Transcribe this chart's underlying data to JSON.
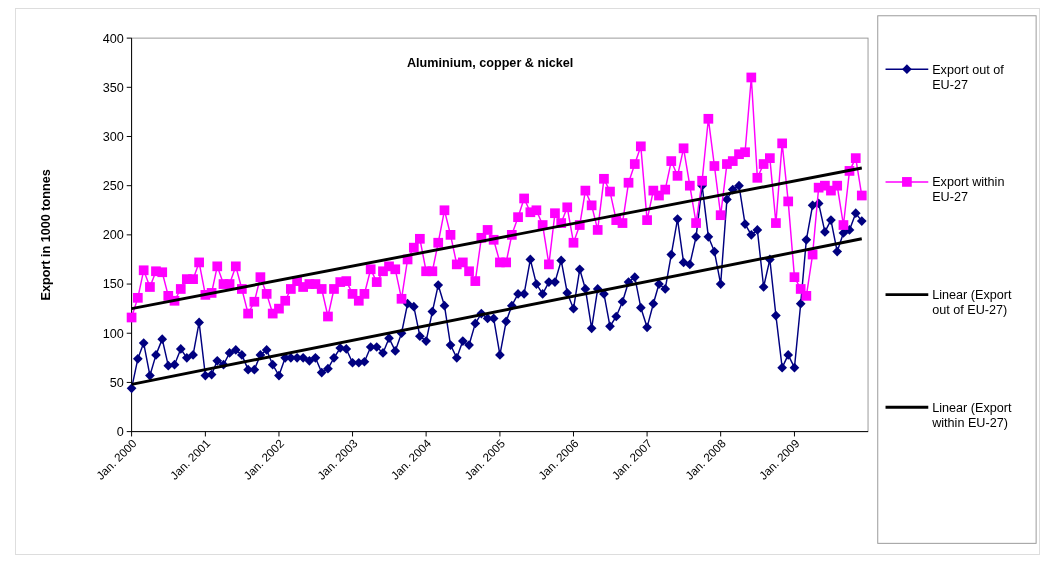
{
  "chart_data": {
    "type": "line",
    "title": "Aluminium, copper & nickel",
    "ylabel": "Export in 1000 tonnes",
    "x": [
      "2000-01",
      "2000-02",
      "2000-03",
      "2000-04",
      "2000-05",
      "2000-06",
      "2000-07",
      "2000-08",
      "2000-09",
      "2000-10",
      "2000-11",
      "2000-12",
      "2001-01",
      "2001-02",
      "2001-03",
      "2001-04",
      "2001-05",
      "2001-06",
      "2001-07",
      "2001-08",
      "2001-09",
      "2001-10",
      "2001-11",
      "2001-12",
      "2002-01",
      "2002-02",
      "2002-03",
      "2002-04",
      "2002-05",
      "2002-06",
      "2002-07",
      "2002-08",
      "2002-09",
      "2002-10",
      "2002-11",
      "2002-12",
      "2003-01",
      "2003-02",
      "2003-03",
      "2003-04",
      "2003-05",
      "2003-06",
      "2003-07",
      "2003-08",
      "2003-09",
      "2003-10",
      "2003-11",
      "2003-12",
      "2004-01",
      "2004-02",
      "2004-03",
      "2004-04",
      "2004-05",
      "2004-06",
      "2004-07",
      "2004-08",
      "2004-09",
      "2004-10",
      "2004-11",
      "2004-12",
      "2005-01",
      "2005-02",
      "2005-03",
      "2005-04",
      "2005-05",
      "2005-06",
      "2005-07",
      "2005-08",
      "2005-09",
      "2005-10",
      "2005-11",
      "2005-12",
      "2006-01",
      "2006-02",
      "2006-03",
      "2006-04",
      "2006-05",
      "2006-06",
      "2006-07",
      "2006-08",
      "2006-09",
      "2006-10",
      "2006-11",
      "2006-12",
      "2007-01",
      "2007-02",
      "2007-03",
      "2007-04",
      "2007-05",
      "2007-06",
      "2007-07",
      "2007-08",
      "2007-09",
      "2007-10",
      "2007-11",
      "2007-12",
      "2008-01",
      "2008-02",
      "2008-03",
      "2008-04",
      "2008-05",
      "2008-06",
      "2008-07",
      "2008-08",
      "2008-09",
      "2008-10",
      "2008-11",
      "2008-12",
      "2009-01",
      "2009-02",
      "2009-03",
      "2009-04",
      "2009-05",
      "2009-06",
      "2009-07",
      "2009-08",
      "2009-09",
      "2009-10",
      "2009-11",
      "2009-12"
    ],
    "series": [
      {
        "name": "Export out of EU-27",
        "color": "#000080",
        "marker": "diamond",
        "values": [
          44,
          74,
          90,
          57,
          78,
          94,
          67,
          68,
          84,
          75,
          78,
          111,
          57,
          58,
          72,
          68,
          80,
          83,
          78,
          63,
          63,
          78,
          83,
          68,
          57,
          75,
          75,
          75,
          75,
          72,
          75,
          60,
          64,
          75,
          85,
          84,
          70,
          70,
          71,
          86,
          86,
          80,
          95,
          82,
          100,
          130,
          127,
          97,
          92,
          122,
          149,
          128,
          88,
          75,
          92,
          88,
          110,
          120,
          115,
          115,
          78,
          112,
          128,
          140,
          140,
          175,
          150,
          140,
          152,
          152,
          174,
          141,
          125,
          165,
          145,
          105,
          145,
          140,
          107,
          117,
          132,
          152,
          157,
          126,
          106,
          130,
          150,
          145,
          180,
          216,
          172,
          170,
          198,
          250,
          198,
          183,
          150,
          236,
          246,
          250,
          211,
          200,
          205,
          147,
          175,
          118,
          65,
          78,
          65,
          130,
          195,
          230,
          232,
          203,
          215,
          183,
          202,
          205,
          222,
          214
        ]
      },
      {
        "name": "Export within EU-27",
        "color": "#ff00ff",
        "marker": "square",
        "values": [
          116,
          136,
          164,
          147,
          163,
          162,
          138,
          133,
          145,
          155,
          155,
          172,
          139,
          141,
          168,
          150,
          150,
          168,
          145,
          120,
          132,
          157,
          140,
          120,
          125,
          133,
          145,
          153,
          147,
          150,
          150,
          145,
          117,
          145,
          152,
          153,
          140,
          133,
          140,
          165,
          152,
          163,
          168,
          165,
          135,
          175,
          187,
          196,
          163,
          163,
          192,
          225,
          200,
          170,
          172,
          163,
          153,
          197,
          205,
          195,
          172,
          172,
          200,
          218,
          237,
          223,
          225,
          210,
          170,
          222,
          212,
          228,
          192,
          210,
          245,
          230,
          205,
          257,
          244,
          215,
          212,
          253,
          272,
          290,
          215,
          245,
          240,
          246,
          275,
          260,
          288,
          250,
          212,
          255,
          318,
          270,
          220,
          272,
          275,
          282,
          284,
          360,
          258,
          272,
          278,
          212,
          293,
          234,
          157,
          145,
          138,
          180,
          248,
          250,
          245,
          250,
          210,
          265,
          278,
          240
        ]
      },
      {
        "name": "Linear (Export out of EU-27)",
        "color": "#000000",
        "marker": "none",
        "x": [
          "2000-01",
          "2009-12"
        ],
        "values": [
          48,
          196
        ]
      },
      {
        "name": "Linear (Export within EU-27)",
        "color": "#000000",
        "marker": "none",
        "x": [
          "2000-01",
          "2009-12"
        ],
        "values": [
          125,
          268
        ]
      }
    ],
    "xlim": [
      "2000-01",
      "2010-01"
    ],
    "xticks": [
      {
        "value": "2000-01",
        "label": "Jan. 2000"
      },
      {
        "value": "2001-01",
        "label": "Jan. 2001"
      },
      {
        "value": "2002-01",
        "label": "Jan. 2002"
      },
      {
        "value": "2003-01",
        "label": "Jan. 2003"
      },
      {
        "value": "2004-01",
        "label": "Jan. 2004"
      },
      {
        "value": "2005-01",
        "label": "Jan. 2005"
      },
      {
        "value": "2006-01",
        "label": "Jan. 2006"
      },
      {
        "value": "2007-01",
        "label": "Jan. 2007"
      },
      {
        "value": "2008-01",
        "label": "Jan. 2008"
      },
      {
        "value": "2009-01",
        "label": "Jan. 2009"
      }
    ],
    "ylim": [
      0,
      400
    ],
    "yticks": [
      0,
      50,
      100,
      150,
      200,
      250,
      300,
      350,
      400
    ],
    "grid": false,
    "legend": "right"
  }
}
